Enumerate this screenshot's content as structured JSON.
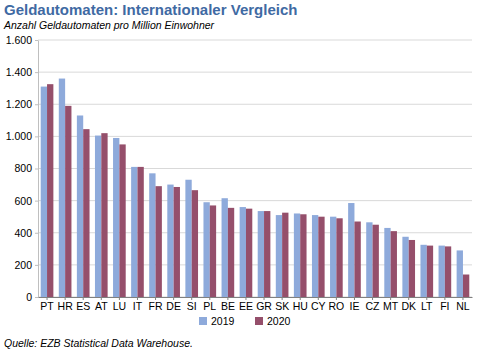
{
  "chart_data": {
    "type": "bar",
    "title": "Geldautomaten: Internationaler Vergleich",
    "subtitle": "Anzahl Geldautomaten pro Million Einwohner",
    "annotations": [
      "Quelle: EZB Statistical Data Warehouse."
    ],
    "categories": [
      "PT",
      "HR",
      "ES",
      "AT",
      "LU",
      "IT",
      "FR",
      "DE",
      "SI",
      "PL",
      "BE",
      "EE",
      "GR",
      "SK",
      "HU",
      "CY",
      "RO",
      "IE",
      "CZ",
      "MT",
      "DK",
      "LT",
      "FI",
      "NL"
    ],
    "series": [
      {
        "name": "2019",
        "color": "#8eaadb",
        "values": [
          1310,
          1360,
          1130,
          1005,
          990,
          810,
          770,
          700,
          730,
          590,
          615,
          560,
          535,
          510,
          520,
          510,
          500,
          585,
          465,
          430,
          375,
          325,
          320,
          290
        ]
      },
      {
        "name": "2020",
        "color": "#954f6b",
        "values": [
          1325,
          1190,
          1045,
          1020,
          950,
          810,
          690,
          685,
          665,
          570,
          555,
          550,
          535,
          525,
          515,
          500,
          490,
          470,
          450,
          410,
          355,
          320,
          315,
          140
        ]
      }
    ],
    "ylim": [
      0,
      1600
    ],
    "yticks": [
      0,
      200,
      400,
      600,
      800,
      {
        "value": 1000,
        "label": "1.000"
      },
      {
        "value": 1200,
        "label": "1.200"
      },
      {
        "value": 1400,
        "label": "1.400"
      },
      {
        "value": 1600,
        "label": "1.600"
      }
    ],
    "grid": true,
    "legend": "bottom"
  }
}
